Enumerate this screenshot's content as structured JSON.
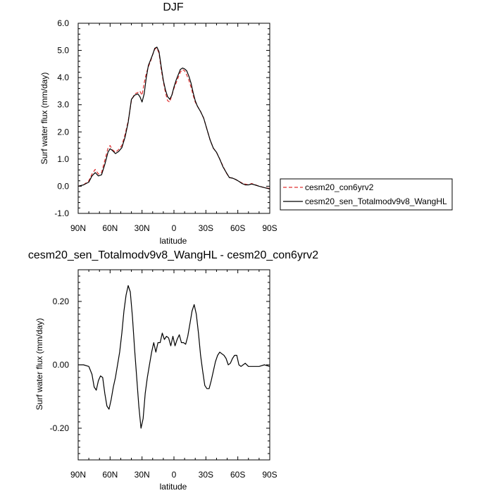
{
  "chart_data": [
    {
      "type": "line",
      "title": "DJF",
      "xlabel": "latitude",
      "ylabel": "Surf water flux (mm/day)",
      "xlim": [
        90,
        -90
      ],
      "ylim": [
        -1.0,
        6.0
      ],
      "x_ticks": [
        90,
        60,
        30,
        0,
        -30,
        -60,
        -90
      ],
      "x_tick_labels": [
        "90N",
        "60N",
        "30N",
        "0",
        "30S",
        "60S",
        "90S"
      ],
      "y_ticks": [
        -1.0,
        0.0,
        1.0,
        2.0,
        3.0,
        4.0,
        5.0,
        6.0
      ],
      "y_tick_labels": [
        "-1.0",
        "0.0",
        "1.0",
        "2.0",
        "3.0",
        "4.0",
        "5.0",
        "6.0"
      ],
      "legend": "right",
      "series": [
        {
          "name": "cesm20_con6yrv2",
          "color": "#e03030",
          "style": "dashed",
          "x": [
            90,
            85,
            80,
            77,
            74,
            71,
            68,
            65,
            62,
            60,
            58,
            55,
            52,
            49,
            46,
            43,
            40,
            37,
            34,
            32,
            30,
            28,
            26,
            24,
            22,
            20,
            18,
            16,
            14,
            12,
            10,
            8,
            6,
            4,
            2,
            0,
            -2,
            -4,
            -6,
            -8,
            -10,
            -12,
            -14,
            -16,
            -18,
            -20,
            -22,
            -25,
            -28,
            -31,
            -34,
            -37,
            -40,
            -43,
            -46,
            -49,
            -52,
            -55,
            -58,
            -61,
            -64,
            -67,
            -70,
            -73,
            -76,
            -80,
            -85,
            -90
          ],
          "y": [
            0.0,
            0.05,
            0.2,
            0.45,
            0.62,
            0.45,
            0.5,
            0.95,
            1.4,
            1.5,
            1.35,
            1.25,
            1.35,
            1.5,
            1.9,
            2.4,
            3.15,
            3.4,
            3.45,
            3.5,
            3.35,
            3.8,
            4.15,
            4.4,
            4.6,
            4.85,
            5.05,
            5.08,
            4.9,
            4.3,
            3.85,
            3.45,
            3.15,
            3.1,
            3.35,
            3.6,
            3.8,
            4.0,
            4.2,
            4.3,
            4.25,
            4.1,
            3.9,
            3.65,
            3.35,
            3.1,
            2.95,
            2.75,
            2.5,
            2.1,
            1.7,
            1.4,
            1.25,
            1.0,
            0.75,
            0.5,
            0.32,
            0.3,
            0.25,
            0.18,
            0.12,
            0.08,
            0.05,
            0.1,
            0.06,
            0.0,
            -0.05,
            -0.08
          ]
        },
        {
          "name": "cesm20_sen_Totalmodv9v8_WangHL",
          "color": "#000000",
          "style": "solid",
          "x": [
            90,
            85,
            80,
            77,
            74,
            71,
            68,
            65,
            62,
            60,
            58,
            55,
            52,
            49,
            46,
            43,
            40,
            37,
            34,
            32,
            30,
            28,
            26,
            24,
            22,
            20,
            18,
            16,
            14,
            12,
            10,
            8,
            6,
            4,
            2,
            0,
            -2,
            -4,
            -6,
            -8,
            -10,
            -12,
            -14,
            -16,
            -18,
            -20,
            -22,
            -25,
            -28,
            -31,
            -34,
            -37,
            -40,
            -43,
            -46,
            -49,
            -52,
            -55,
            -58,
            -61,
            -64,
            -67,
            -70,
            -73,
            -76,
            -80,
            -85,
            -90
          ],
          "y": [
            0.0,
            0.05,
            0.15,
            0.38,
            0.5,
            0.38,
            0.42,
            0.8,
            1.25,
            1.38,
            1.32,
            1.2,
            1.28,
            1.42,
            1.8,
            2.35,
            3.2,
            3.35,
            3.4,
            3.3,
            3.1,
            3.4,
            4.0,
            4.45,
            4.65,
            4.85,
            5.08,
            5.12,
            4.95,
            4.4,
            3.9,
            3.55,
            3.3,
            3.2,
            3.35,
            3.65,
            3.9,
            4.1,
            4.3,
            4.35,
            4.32,
            4.25,
            4.05,
            3.8,
            3.45,
            3.15,
            2.95,
            2.75,
            2.5,
            2.1,
            1.7,
            1.4,
            1.25,
            1.0,
            0.72,
            0.52,
            0.32,
            0.3,
            0.25,
            0.18,
            0.1,
            0.05,
            0.05,
            0.08,
            0.05,
            0.0,
            -0.05,
            -0.1
          ]
        }
      ]
    },
    {
      "type": "line",
      "title": "cesm20_sen_Totalmodv9v8_WangHL - cesm20_con6yrv2",
      "xlabel": "latitude",
      "ylabel": "Surf water flux (mm/day)",
      "xlim": [
        90,
        -90
      ],
      "ylim": [
        -0.3,
        0.3
      ],
      "x_ticks": [
        90,
        60,
        30,
        0,
        -30,
        -60,
        -90
      ],
      "x_tick_labels": [
        "90N",
        "60N",
        "30N",
        "0",
        "30S",
        "60S",
        "90S"
      ],
      "y_ticks": [
        -0.2,
        0.0,
        0.2
      ],
      "y_tick_labels": [
        "-0.20",
        "0.00",
        "0.20"
      ],
      "series": [
        {
          "color": "#000000",
          "style": "solid",
          "x": [
            90,
            85,
            80,
            77,
            75,
            73,
            71,
            69,
            67,
            65,
            63,
            61,
            59,
            57,
            55,
            53,
            51,
            49,
            47,
            45,
            43,
            41,
            39,
            37,
            35,
            33,
            31,
            29,
            27,
            25,
            23,
            21,
            19,
            17,
            15,
            13,
            11,
            9,
            7,
            5,
            3,
            1,
            -1,
            -3,
            -5,
            -7,
            -9,
            -11,
            -13,
            -15,
            -17,
            -19,
            -21,
            -23,
            -25,
            -27,
            -29,
            -31,
            -33,
            -35,
            -37,
            -39,
            -41,
            -43,
            -45,
            -47,
            -49,
            -51,
            -53,
            -55,
            -57,
            -59,
            -61,
            -63,
            -65,
            -67,
            -70,
            -75,
            -80,
            -85,
            -90
          ],
          "y": [
            0.0,
            0.0,
            -0.005,
            -0.03,
            -0.07,
            -0.08,
            -0.05,
            -0.035,
            -0.04,
            -0.09,
            -0.13,
            -0.14,
            -0.11,
            -0.07,
            -0.04,
            0.0,
            0.04,
            0.1,
            0.17,
            0.22,
            0.25,
            0.23,
            0.15,
            0.05,
            -0.04,
            -0.13,
            -0.2,
            -0.17,
            -0.09,
            -0.04,
            0.0,
            0.04,
            0.07,
            0.04,
            0.07,
            0.07,
            0.1,
            0.08,
            0.09,
            0.085,
            0.06,
            0.09,
            0.06,
            0.08,
            0.095,
            0.07,
            0.07,
            0.065,
            0.09,
            0.13,
            0.17,
            0.19,
            0.16,
            0.1,
            0.03,
            -0.02,
            -0.065,
            -0.075,
            -0.075,
            -0.05,
            -0.02,
            0.01,
            0.03,
            0.04,
            0.035,
            0.03,
            0.02,
            0.0,
            0.005,
            0.02,
            0.03,
            0.03,
            0.0,
            -0.005,
            0.0,
            0.005,
            -0.005,
            -0.005,
            -0.005,
            0.0,
            -0.005
          ]
        }
      ]
    }
  ]
}
